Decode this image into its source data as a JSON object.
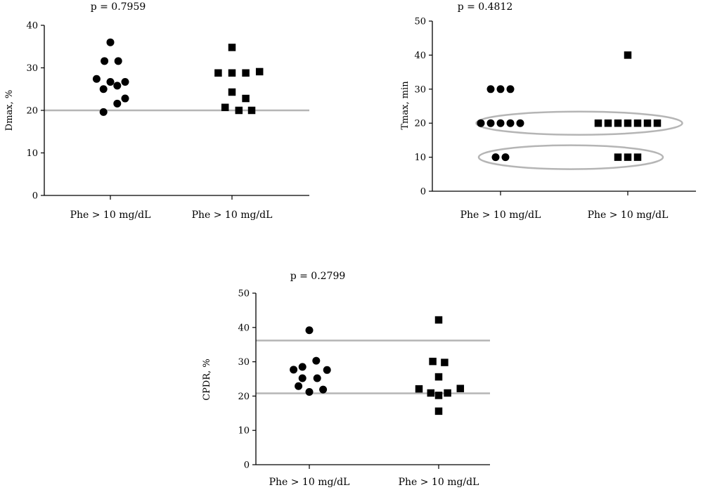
{
  "charts": [
    {
      "type": "scatter",
      "title": "p = 0.7959",
      "ylabel": "Dmax, %",
      "ylim": [
        0,
        40
      ],
      "yticks": [
        0,
        10,
        20,
        30,
        40
      ],
      "categories": [
        "Phe > 10 mg/dL",
        "Phe > 10 mg/dL"
      ],
      "reference_lines": [
        20
      ],
      "ellipses": [],
      "series": [
        {
          "marker": "circle",
          "category": 0,
          "points": [
            {
              "dx": 0,
              "y": 36.0
            },
            {
              "dx": -0.6,
              "y": 31.6
            },
            {
              "dx": 0.8,
              "y": 31.6
            },
            {
              "dx": -1.4,
              "y": 27.4
            },
            {
              "dx": 0,
              "y": 26.7
            },
            {
              "dx": 1.5,
              "y": 26.7
            },
            {
              "dx": -0.7,
              "y": 25.0
            },
            {
              "dx": 0.7,
              "y": 25.8
            },
            {
              "dx": 1.5,
              "y": 22.8
            },
            {
              "dx": 0.7,
              "y": 21.6
            },
            {
              "dx": -0.7,
              "y": 19.6
            }
          ]
        },
        {
          "marker": "square",
          "category": 1,
          "points": [
            {
              "dx": 0,
              "y": 34.8
            },
            {
              "dx": -1.4,
              "y": 28.8
            },
            {
              "dx": 0,
              "y": 28.8
            },
            {
              "dx": 1.4,
              "y": 28.8
            },
            {
              "dx": 2.8,
              "y": 29.1
            },
            {
              "dx": 0,
              "y": 24.3
            },
            {
              "dx": 1.4,
              "y": 22.8
            },
            {
              "dx": -0.7,
              "y": 20.7
            },
            {
              "dx": 0.7,
              "y": 20.0
            },
            {
              "dx": 2.0,
              "y": 20.0
            }
          ]
        }
      ]
    },
    {
      "type": "scatter",
      "title": "p = 0.4812",
      "ylabel": "Tmax, min",
      "ylim": [
        0,
        50
      ],
      "yticks": [
        0,
        10,
        20,
        30,
        40,
        50
      ],
      "categories": [
        "Phe > 10 mg/dL",
        "Phe > 10 mg/dL"
      ],
      "reference_lines": [],
      "ellipses": [
        {
          "y": 20
        },
        {
          "y": 10
        }
      ],
      "series": [
        {
          "marker": "circle",
          "category": 0,
          "points": [
            {
              "dx": -1,
              "y": 30
            },
            {
              "dx": 0,
              "y": 30
            },
            {
              "dx": 1,
              "y": 30
            },
            {
              "dx": -2,
              "y": 20
            },
            {
              "dx": -1,
              "y": 20
            },
            {
              "dx": 0,
              "y": 20
            },
            {
              "dx": 1,
              "y": 20
            },
            {
              "dx": 2,
              "y": 20
            },
            {
              "dx": -0.5,
              "y": 10
            },
            {
              "dx": 0.5,
              "y": 10
            }
          ]
        },
        {
          "marker": "square",
          "category": 1,
          "points": [
            {
              "dx": 0,
              "y": 40
            },
            {
              "dx": -3,
              "y": 20
            },
            {
              "dx": -2,
              "y": 20
            },
            {
              "dx": -1,
              "y": 20
            },
            {
              "dx": 0,
              "y": 20
            },
            {
              "dx": 1,
              "y": 20
            },
            {
              "dx": 2,
              "y": 20
            },
            {
              "dx": 3,
              "y": 20
            },
            {
              "dx": -1,
              "y": 10
            },
            {
              "dx": 0,
              "y": 10
            },
            {
              "dx": 1,
              "y": 10
            }
          ]
        }
      ]
    },
    {
      "type": "scatter",
      "title": "p = 0.2799",
      "ylabel": "CPDR, %",
      "ylim": [
        0,
        50
      ],
      "yticks": [
        0,
        10,
        20,
        30,
        40,
        50
      ],
      "categories": [
        "Phe > 10 mg/dL",
        "Phe > 10 mg/dL"
      ],
      "reference_lines": [
        36.2,
        20.8
      ],
      "ellipses": [],
      "series": [
        {
          "marker": "circle",
          "category": 0,
          "points": [
            {
              "dx": 0,
              "y": 39.2
            },
            {
              "dx": 0.7,
              "y": 30.3
            },
            {
              "dx": -0.7,
              "y": 28.5
            },
            {
              "dx": -1.6,
              "y": 27.7
            },
            {
              "dx": 1.8,
              "y": 27.6
            },
            {
              "dx": -0.7,
              "y": 25.2
            },
            {
              "dx": 0.8,
              "y": 25.2
            },
            {
              "dx": -1.1,
              "y": 22.9
            },
            {
              "dx": 1.4,
              "y": 21.9
            },
            {
              "dx": 0,
              "y": 21.2
            }
          ]
        },
        {
          "marker": "square",
          "category": 1,
          "points": [
            {
              "dx": 0,
              "y": 42.2
            },
            {
              "dx": -0.6,
              "y": 30.1
            },
            {
              "dx": 0.6,
              "y": 29.8
            },
            {
              "dx": 0,
              "y": 25.6
            },
            {
              "dx": -2.0,
              "y": 22.1
            },
            {
              "dx": 2.2,
              "y": 22.2
            },
            {
              "dx": -0.8,
              "y": 20.9
            },
            {
              "dx": 0.9,
              "y": 20.9
            },
            {
              "dx": 0,
              "y": 20.2
            },
            {
              "dx": 0,
              "y": 15.6
            }
          ]
        }
      ]
    }
  ]
}
